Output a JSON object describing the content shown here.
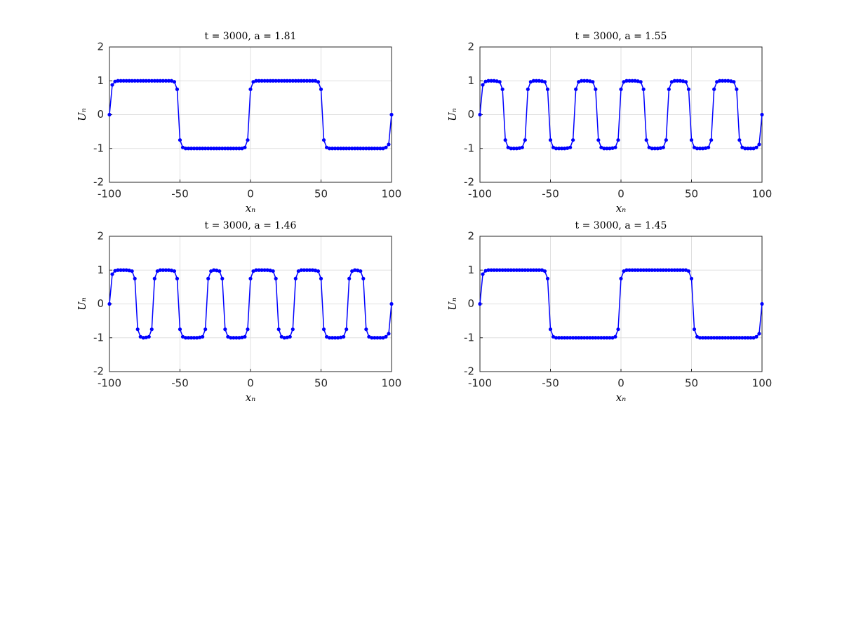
{
  "chart_data": [
    {
      "type": "line",
      "title": "t = 3000, a = 1.81",
      "xlabel": "xₙ",
      "ylabel": "Uₙ",
      "color": "#0000ff",
      "grid": true,
      "xlim": [
        -100,
        100
      ],
      "ylim": [
        -2,
        2
      ],
      "xticks": [
        -100,
        -50,
        0,
        50,
        100
      ],
      "yticks": [
        -2,
        -1,
        0,
        1,
        2
      ],
      "x": [
        -100,
        -98,
        -96,
        -94,
        -92,
        -90,
        -88,
        -86,
        -84,
        -82,
        -80,
        -78,
        -76,
        -74,
        -72,
        -70,
        -68,
        -66,
        -64,
        -62,
        -60,
        -58,
        -56,
        -54,
        -52,
        -50,
        -48,
        -46,
        -44,
        -42,
        -40,
        -38,
        -36,
        -34,
        -32,
        -30,
        -28,
        -26,
        -24,
        -22,
        -20,
        -18,
        -16,
        -14,
        -12,
        -10,
        -8,
        -6,
        -4,
        -2,
        0,
        2,
        4,
        6,
        8,
        10,
        12,
        14,
        16,
        18,
        20,
        22,
        24,
        26,
        28,
        30,
        32,
        34,
        36,
        38,
        40,
        42,
        44,
        46,
        48,
        50,
        52,
        54,
        56,
        58,
        60,
        62,
        64,
        66,
        68,
        70,
        72,
        74,
        76,
        78,
        80,
        82,
        84,
        86,
        88,
        90,
        92,
        94,
        96,
        98,
        100
      ],
      "values": [
        0,
        0.88,
        0.98,
        1,
        1,
        1,
        1,
        1,
        1,
        1,
        1,
        1,
        1,
        1,
        1,
        1,
        1,
        1,
        1,
        1,
        1,
        1,
        1,
        0.97,
        0.75,
        -0.75,
        -0.97,
        -1,
        -1,
        -1,
        -1,
        -1,
        -1,
        -1,
        -1,
        -1,
        -1,
        -1,
        -1,
        -1,
        -1,
        -1,
        -1,
        -1,
        -1,
        -1,
        -1,
        -1,
        -0.97,
        -0.75,
        0.75,
        0.97,
        1,
        1,
        1,
        1,
        1,
        1,
        1,
        1,
        1,
        1,
        1,
        1,
        1,
        1,
        1,
        1,
        1,
        1,
        1,
        1,
        1,
        1,
        0.97,
        0.75,
        -0.75,
        -0.97,
        -1,
        -1,
        -1,
        -1,
        -1,
        -1,
        -1,
        -1,
        -1,
        -1,
        -1,
        -1,
        -1,
        -1,
        -1,
        -1,
        -1,
        -1,
        -1,
        -1,
        -0.97,
        -0.88,
        0
      ]
    },
    {
      "type": "line",
      "title": "t = 3000, a = 1.55",
      "xlabel": "xₙ",
      "ylabel": "Uₙ",
      "color": "#0000ff",
      "grid": true,
      "xlim": [
        -100,
        100
      ],
      "ylim": [
        -2,
        2
      ],
      "xticks": [
        -100,
        -50,
        0,
        50,
        100
      ],
      "yticks": [
        -2,
        -1,
        0,
        1,
        2
      ],
      "x": [
        -100,
        -98,
        -96,
        -94,
        -92,
        -90,
        -88,
        -86,
        -84,
        -82,
        -80,
        -78,
        -76,
        -74,
        -72,
        -70,
        -68,
        -66,
        -64,
        -62,
        -60,
        -58,
        -56,
        -54,
        -52,
        -50,
        -48,
        -46,
        -44,
        -42,
        -40,
        -38,
        -36,
        -34,
        -32,
        -30,
        -28,
        -26,
        -24,
        -22,
        -20,
        -18,
        -16,
        -14,
        -12,
        -10,
        -8,
        -6,
        -4,
        -2,
        0,
        2,
        4,
        6,
        8,
        10,
        12,
        14,
        16,
        18,
        20,
        22,
        24,
        26,
        28,
        30,
        32,
        34,
        36,
        38,
        40,
        42,
        44,
        46,
        48,
        50,
        52,
        54,
        56,
        58,
        60,
        62,
        64,
        66,
        68,
        70,
        72,
        74,
        76,
        78,
        80,
        82,
        84,
        86,
        88,
        90,
        92,
        94,
        96,
        98,
        100
      ],
      "values": [
        0,
        0.88,
        0.98,
        1,
        1,
        1,
        0.99,
        0.97,
        0.75,
        -0.75,
        -0.97,
        -1,
        -1,
        -1,
        -0.99,
        -0.97,
        -0.75,
        0.75,
        0.97,
        1,
        1,
        1,
        0.99,
        0.97,
        0.75,
        -0.75,
        -0.97,
        -1,
        -1,
        -1,
        -1,
        -0.99,
        -0.97,
        -0.75,
        0.75,
        0.97,
        1,
        1,
        1,
        0.99,
        0.97,
        0.75,
        -0.75,
        -0.97,
        -1,
        -1,
        -1,
        -0.99,
        -0.97,
        -0.75,
        0.75,
        0.97,
        1,
        1,
        1,
        1,
        0.99,
        0.97,
        0.75,
        -0.75,
        -0.97,
        -1,
        -1,
        -1,
        -0.99,
        -0.97,
        -0.75,
        0.75,
        0.97,
        1,
        1,
        1,
        0.99,
        0.97,
        0.75,
        -0.75,
        -0.97,
        -1,
        -1,
        -1,
        -0.99,
        -0.97,
        -0.75,
        0.75,
        0.97,
        1,
        1,
        1,
        1,
        0.99,
        0.97,
        0.75,
        -0.75,
        -0.97,
        -1,
        -1,
        -1,
        -1,
        -0.97,
        -0.88,
        0
      ]
    },
    {
      "type": "line",
      "title": "t = 3000, a = 1.46",
      "xlabel": "xₙ",
      "ylabel": "Uₙ",
      "color": "#0000ff",
      "grid": true,
      "xlim": [
        -100,
        100
      ],
      "ylim": [
        -2,
        2
      ],
      "xticks": [
        -100,
        -50,
        0,
        50,
        100
      ],
      "yticks": [
        -2,
        -1,
        0,
        1,
        2
      ],
      "x": [
        -100,
        -98,
        -96,
        -94,
        -92,
        -90,
        -88,
        -86,
        -84,
        -82,
        -80,
        -78,
        -76,
        -74,
        -72,
        -70,
        -68,
        -66,
        -64,
        -62,
        -60,
        -58,
        -56,
        -54,
        -52,
        -50,
        -48,
        -46,
        -44,
        -42,
        -40,
        -38,
        -36,
        -34,
        -32,
        -30,
        -28,
        -26,
        -24,
        -22,
        -20,
        -18,
        -16,
        -14,
        -12,
        -10,
        -8,
        -6,
        -4,
        -2,
        0,
        2,
        4,
        6,
        8,
        10,
        12,
        14,
        16,
        18,
        20,
        22,
        24,
        26,
        28,
        30,
        32,
        34,
        36,
        38,
        40,
        42,
        44,
        46,
        48,
        50,
        52,
        54,
        56,
        58,
        60,
        62,
        64,
        66,
        68,
        70,
        72,
        74,
        76,
        78,
        80,
        82,
        84,
        86,
        88,
        90,
        92,
        94,
        96,
        98,
        100
      ],
      "values": [
        0,
        0.88,
        0.98,
        1,
        1,
        1,
        1,
        0.99,
        0.97,
        0.75,
        -0.75,
        -0.97,
        -1,
        -0.99,
        -0.97,
        -0.75,
        0.75,
        0.97,
        1,
        1,
        1,
        1,
        0.99,
        0.97,
        0.75,
        -0.75,
        -0.97,
        -1,
        -1,
        -1,
        -1,
        -1,
        -0.99,
        -0.97,
        -0.75,
        0.75,
        0.97,
        1,
        0.99,
        0.97,
        0.75,
        -0.75,
        -0.97,
        -1,
        -1,
        -1,
        -1,
        -0.99,
        -0.97,
        -0.75,
        0.75,
        0.97,
        1,
        1,
        1,
        1,
        1,
        0.99,
        0.97,
        0.75,
        -0.75,
        -0.97,
        -1,
        -0.99,
        -0.97,
        -0.75,
        0.75,
        0.97,
        1,
        1,
        1,
        1,
        1,
        0.99,
        0.97,
        0.75,
        -0.75,
        -0.97,
        -1,
        -1,
        -1,
        -1,
        -0.99,
        -0.97,
        -0.75,
        0.75,
        0.97,
        1,
        0.99,
        0.97,
        0.75,
        -0.75,
        -0.97,
        -1,
        -1,
        -1,
        -1,
        -1,
        -0.97,
        -0.88,
        0
      ]
    },
    {
      "type": "line",
      "title": "t = 3000, a = 1.45",
      "xlabel": "xₙ",
      "ylabel": "Uₙ",
      "color": "#0000ff",
      "grid": true,
      "xlim": [
        -100,
        100
      ],
      "ylim": [
        -2,
        2
      ],
      "xticks": [
        -100,
        -50,
        0,
        50,
        100
      ],
      "yticks": [
        -2,
        -1,
        0,
        1,
        2
      ],
      "x": [
        -100,
        -98,
        -96,
        -94,
        -92,
        -90,
        -88,
        -86,
        -84,
        -82,
        -80,
        -78,
        -76,
        -74,
        -72,
        -70,
        -68,
        -66,
        -64,
        -62,
        -60,
        -58,
        -56,
        -54,
        -52,
        -50,
        -48,
        -46,
        -44,
        -42,
        -40,
        -38,
        -36,
        -34,
        -32,
        -30,
        -28,
        -26,
        -24,
        -22,
        -20,
        -18,
        -16,
        -14,
        -12,
        -10,
        -8,
        -6,
        -4,
        -2,
        0,
        2,
        4,
        6,
        8,
        10,
        12,
        14,
        16,
        18,
        20,
        22,
        24,
        26,
        28,
        30,
        32,
        34,
        36,
        38,
        40,
        42,
        44,
        46,
        48,
        50,
        52,
        54,
        56,
        58,
        60,
        62,
        64,
        66,
        68,
        70,
        72,
        74,
        76,
        78,
        80,
        82,
        84,
        86,
        88,
        90,
        92,
        94,
        96,
        98,
        100
      ],
      "values": [
        0,
        0.88,
        0.98,
        1,
        1,
        1,
        1,
        1,
        1,
        1,
        1,
        1,
        1,
        1,
        1,
        1,
        1,
        1,
        1,
        1,
        1,
        1,
        1,
        0.97,
        0.75,
        -0.75,
        -0.97,
        -1,
        -1,
        -1,
        -1,
        -1,
        -1,
        -1,
        -1,
        -1,
        -1,
        -1,
        -1,
        -1,
        -1,
        -1,
        -1,
        -1,
        -1,
        -1,
        -1,
        -1,
        -0.97,
        -0.75,
        0.75,
        0.97,
        1,
        1,
        1,
        1,
        1,
        1,
        1,
        1,
        1,
        1,
        1,
        1,
        1,
        1,
        1,
        1,
        1,
        1,
        1,
        1,
        1,
        1,
        0.97,
        0.75,
        -0.75,
        -0.97,
        -1,
        -1,
        -1,
        -1,
        -1,
        -1,
        -1,
        -1,
        -1,
        -1,
        -1,
        -1,
        -1,
        -1,
        -1,
        -1,
        -1,
        -1,
        -1,
        -1,
        -0.97,
        -0.88,
        0
      ]
    }
  ]
}
